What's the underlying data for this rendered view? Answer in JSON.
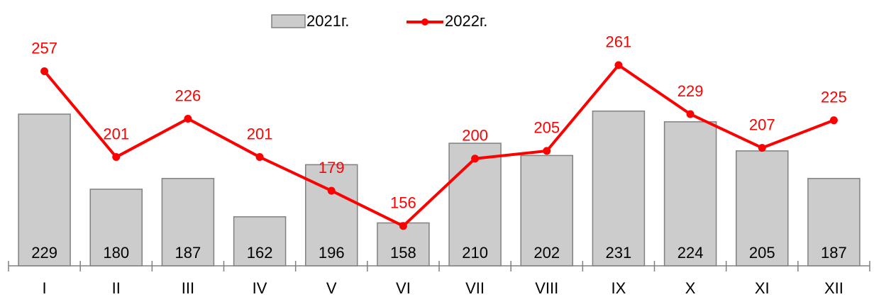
{
  "chart_data": {
    "type": "bar-line",
    "categories": [
      "I",
      "II",
      "III",
      "IV",
      "V",
      "VI",
      "VII",
      "VIII",
      "IX",
      "X",
      "XI",
      "XII"
    ],
    "series": [
      {
        "name": "2021г.",
        "type": "bar",
        "color": "#cccccc",
        "values": [
          229,
          180,
          187,
          162,
          196,
          158,
          210,
          202,
          231,
          224,
          205,
          187
        ]
      },
      {
        "name": "2022г.",
        "type": "line",
        "color": "#ff0000",
        "values": [
          257,
          201,
          226,
          201,
          179,
          156,
          200,
          205,
          261,
          229,
          207,
          225
        ]
      }
    ],
    "ylim": [
      130,
      285
    ]
  }
}
